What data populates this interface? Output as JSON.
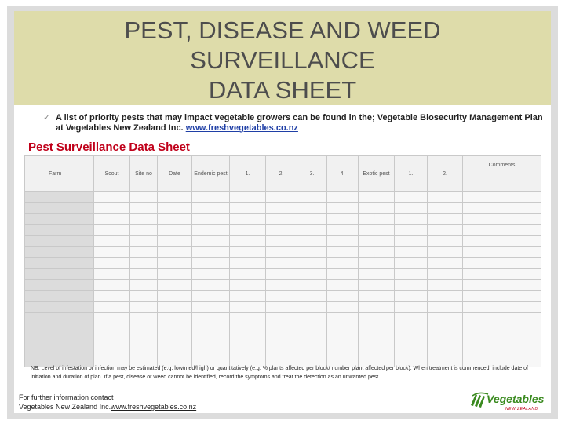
{
  "title_lines": [
    "PEST, DISEASE AND WEED",
    "SURVEILLANCE",
    "DATA SHEET"
  ],
  "bullet": {
    "icon": "check-icon",
    "text": "A list of priority pests that may impact vegetable growers can be found in the; Vegetable Biosecurity Management Plan at Vegetables New Zealand Inc.",
    "link": "www.freshvegetables.co.nz"
  },
  "section_title": "Pest Surveillance Data Sheet",
  "table": {
    "headers": [
      "Farm",
      "Scout",
      "Site no",
      "Date",
      "Endemic pest",
      "1.",
      "2.",
      "3.",
      "4.",
      "Exotic pest",
      "1.",
      "2.",
      "Comments"
    ],
    "row_count": 16
  },
  "note": "NB: Level of infestation or infection may be estimated (e.g. low/med/high) or quantitatively (e.g. % plants affected per block/ number plant affected per block). When treatment is commenced, include date of initiation and duration of plan. If a pest, disease or weed cannot be identified, record the symptoms and treat the detection as an unwanted pest.",
  "contact": {
    "line1": "For further information contact",
    "line2_prefix": "Vegetables New Zealand Inc.",
    "link": "www.freshvegetables.co.nz"
  },
  "logo": {
    "name": "Vegetables",
    "sub": "NEW ZEALAND",
    "color": "#3a8a1f"
  }
}
